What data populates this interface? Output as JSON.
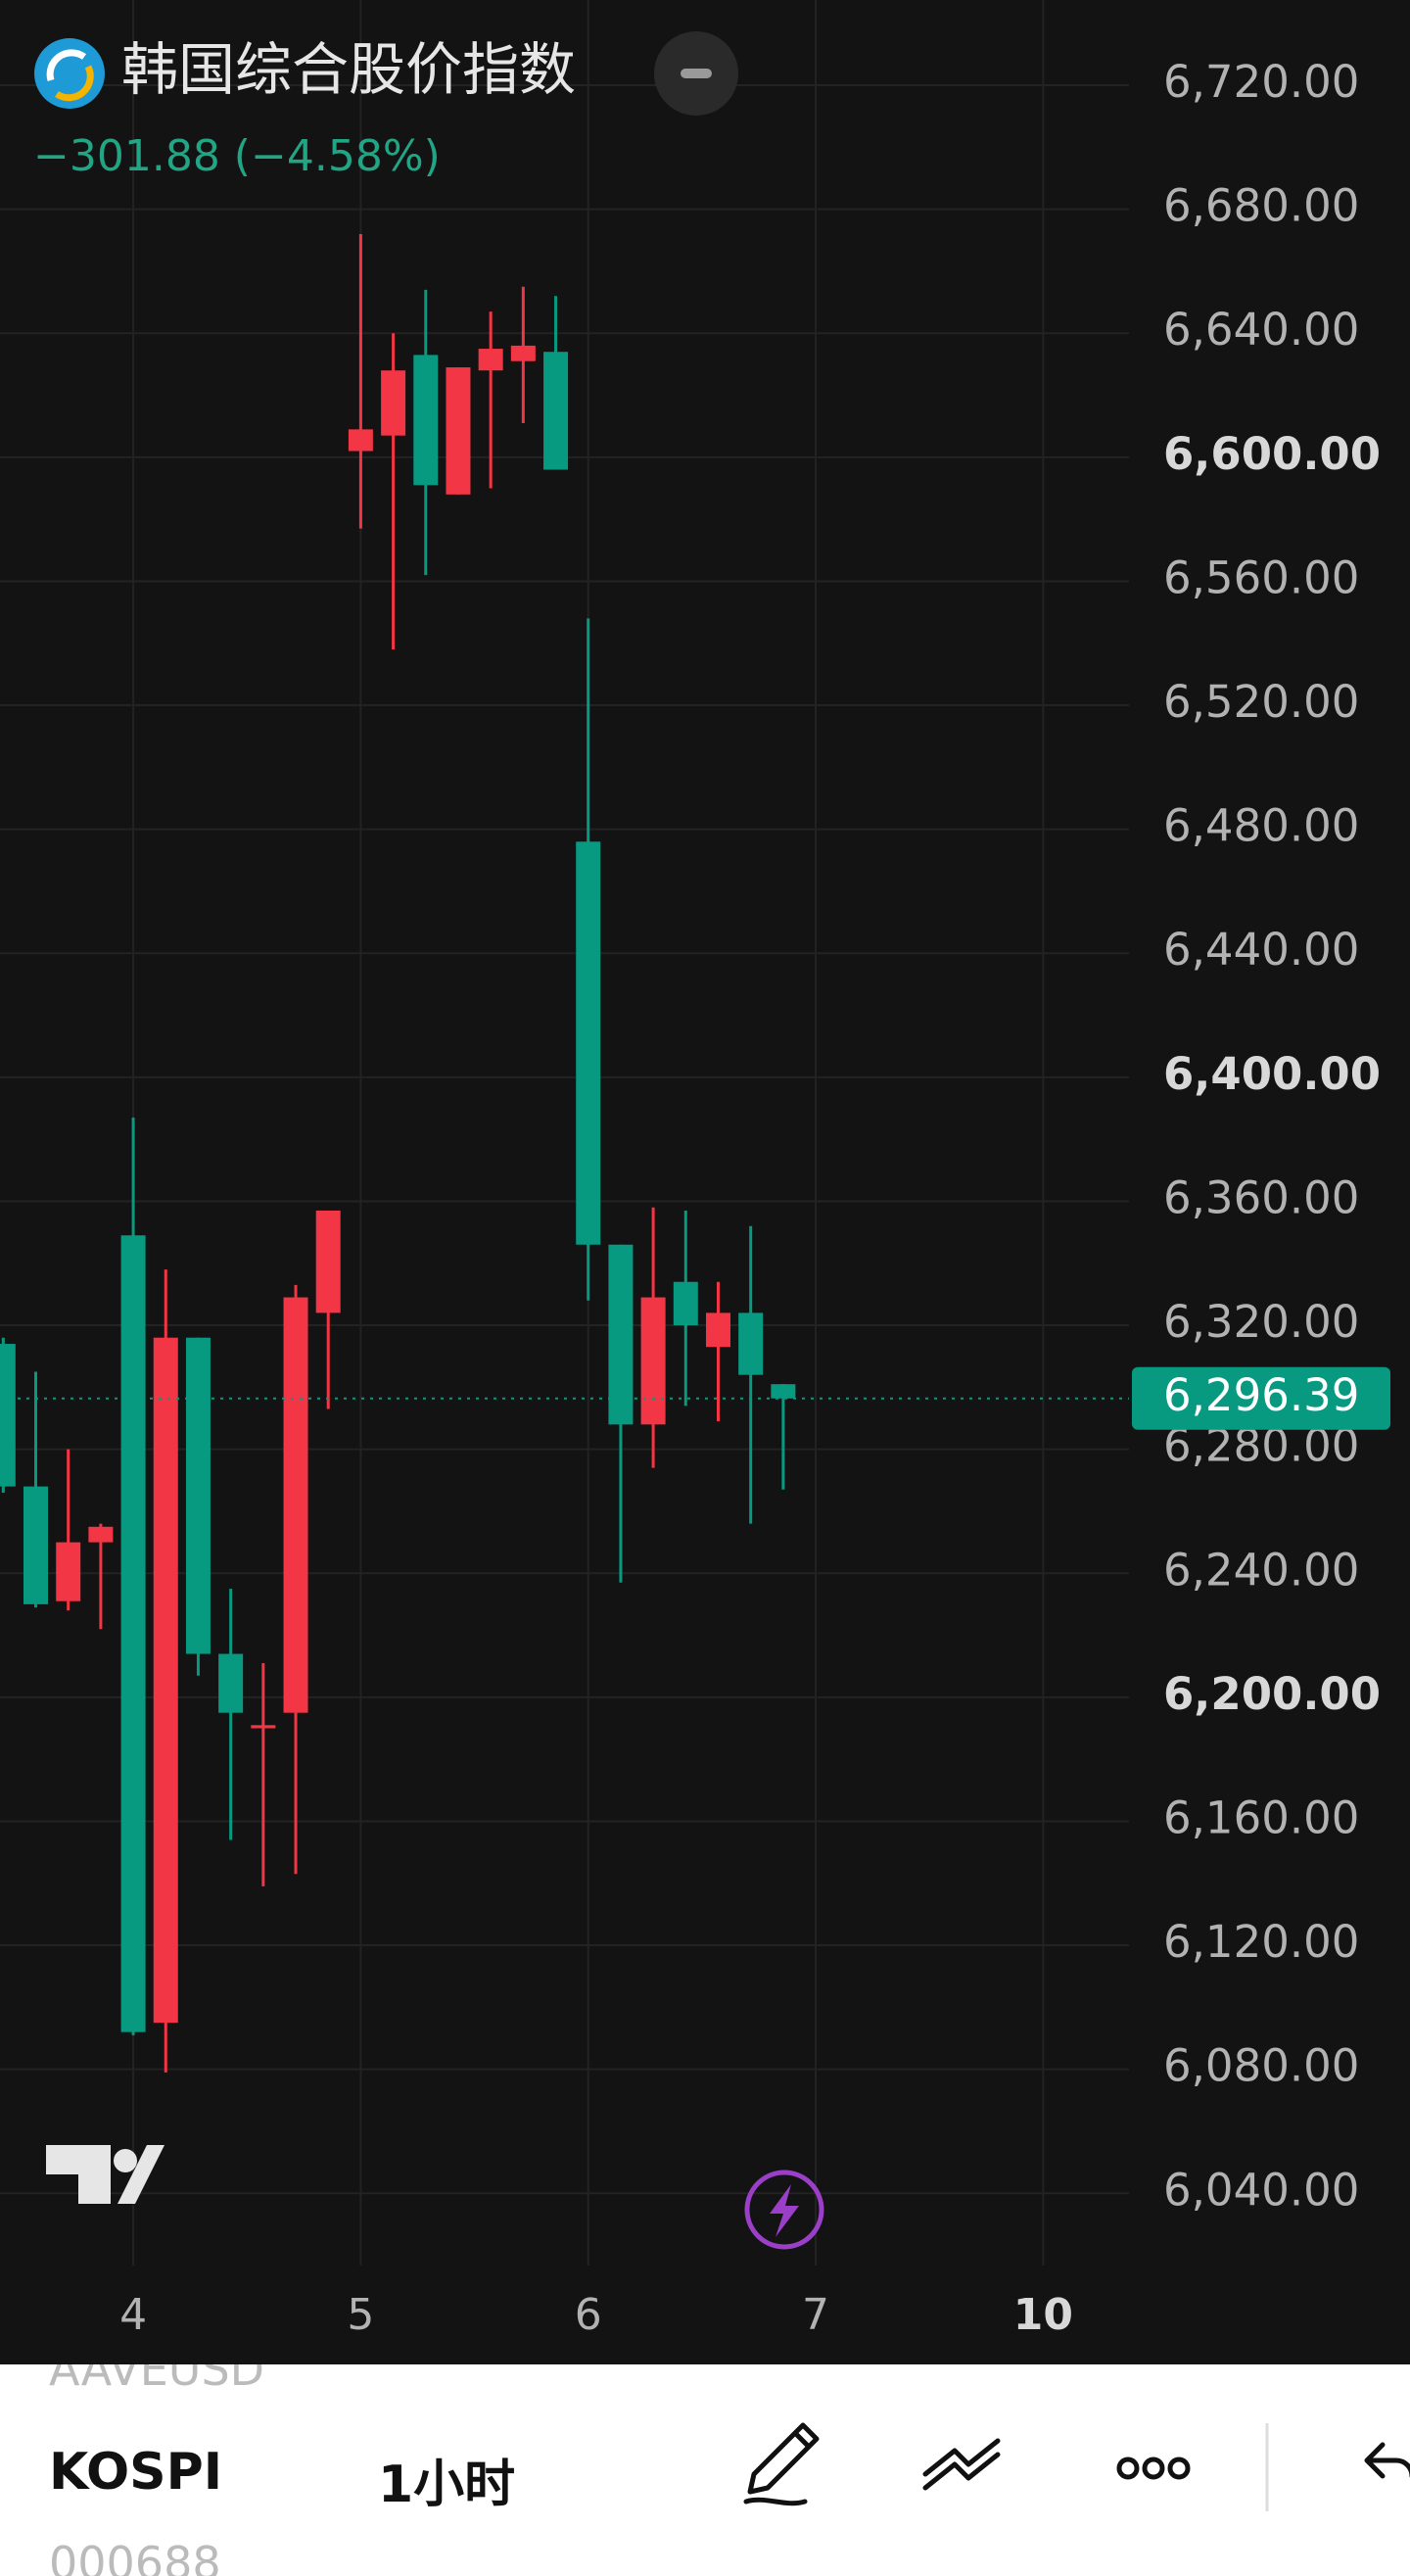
{
  "chart_data": {
    "type": "candlestick",
    "title": "韩国综合股价指数",
    "subtitle": "−301.88 (−4.58%)",
    "x": [
      -4,
      -3,
      -2,
      -1,
      0,
      1,
      2,
      3,
      4,
      5,
      6,
      7,
      8,
      9,
      10,
      11,
      12,
      13,
      14,
      15,
      16,
      17,
      18,
      19,
      20
    ],
    "open": [
      6314,
      6268,
      6231,
      6250,
      6349,
      6095,
      6316,
      6214,
      6190,
      6195,
      6324,
      6602,
      6607,
      6633,
      6588,
      6628,
      6631,
      6634,
      6476,
      6346,
      6288,
      6334,
      6313,
      6324,
      6301
    ],
    "high": [
      6316,
      6305,
      6280,
      6256,
      6387,
      6338,
      6316,
      6235,
      6211,
      6333,
      6357,
      6672,
      6640,
      6654,
      6629,
      6647,
      6655,
      6652,
      6548,
      6346,
      6358,
      6357,
      6334,
      6352,
      6301
    ],
    "low": [
      6266,
      6229,
      6228,
      6222,
      6091,
      6079,
      6207,
      6154,
      6139,
      6143,
      6293,
      6577,
      6538,
      6562,
      6588,
      6590,
      6611,
      6596,
      6328,
      6237,
      6274,
      6294,
      6289,
      6256,
      6267
    ],
    "close": [
      6268,
      6230,
      6250,
      6255,
      6092,
      6316,
      6214,
      6195,
      6191,
      6329,
      6357,
      6609,
      6628,
      6591,
      6629,
      6635,
      6636,
      6596,
      6346,
      6288,
      6329,
      6320,
      6324,
      6304,
      6296.39
    ],
    "up_color": "#f23645",
    "down_color": "#089981",
    "xlim": [
      -4.1,
      30.64
    ],
    "xticks": [
      {
        "value": 0,
        "label": "4"
      },
      {
        "value": 7,
        "label": "5"
      },
      {
        "value": 14,
        "label": "6"
      },
      {
        "value": 21,
        "label": "7"
      },
      {
        "value": 28,
        "label": "10",
        "bold": true
      }
    ],
    "ylim": [
      6016.7,
      6747.5
    ],
    "yticks": [
      {
        "value": 6040,
        "label": "6,040.00"
      },
      {
        "value": 6080,
        "label": "6,080.00"
      },
      {
        "value": 6120,
        "label": "6,120.00"
      },
      {
        "value": 6160,
        "label": "6,160.00"
      },
      {
        "value": 6200,
        "label": "6,200.00",
        "bold": true
      },
      {
        "value": 6240,
        "label": "6,240.00"
      },
      {
        "value": 6280,
        "label": "6,280.00"
      },
      {
        "value": 6320,
        "label": "6,320.00"
      },
      {
        "value": 6360,
        "label": "6,360.00"
      },
      {
        "value": 6400,
        "label": "6,400.00",
        "bold": true
      },
      {
        "value": 6440,
        "label": "6,440.00"
      },
      {
        "value": 6480,
        "label": "6,480.00"
      },
      {
        "value": 6520,
        "label": "6,520.00"
      },
      {
        "value": 6560,
        "label": "6,560.00"
      },
      {
        "value": 6600,
        "label": "6,600.00",
        "bold": true
      },
      {
        "value": 6640,
        "label": "6,640.00"
      },
      {
        "value": 6680,
        "label": "6,680.00"
      },
      {
        "value": 6720,
        "label": "6,720.00"
      }
    ],
    "grid": true,
    "last_price": {
      "value": 6296.39,
      "label": "6,296.39"
    }
  },
  "toolbar": {
    "above": "AAVEUSD",
    "symbol": "KOSPI",
    "interval": "1小时",
    "below": "000688"
  }
}
